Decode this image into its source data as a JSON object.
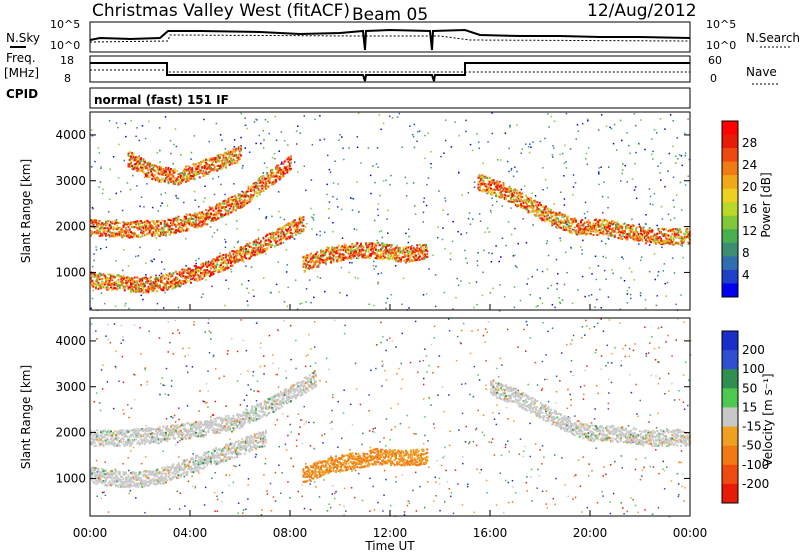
{
  "header": {
    "station": "Christmas Valley West (fitACF)",
    "beam": "Beam 05",
    "date": "12/Aug/2012"
  },
  "status_panels": {
    "left_labels": {
      "nsky": "N.Sky",
      "freq": "Freq.",
      "freq_unit": "[MHz]",
      "cpid": "CPID"
    },
    "right_labels": {
      "nsearch": "N.Search",
      "nave": "Nave"
    },
    "noise_ticks": {
      "top": "10^5",
      "bottom": "10^0"
    },
    "freq_ticks": {
      "top": "18",
      "bottom": "8"
    },
    "nave_ticks": {
      "top": "60",
      "bottom": "0"
    },
    "cpid_text": "normal (fast) 151 IF"
  },
  "chart_data": [
    {
      "type": "heatmap",
      "name": "power",
      "ylabel": "Slant Range [km]",
      "ylim": [
        180,
        4500
      ],
      "xlim_hours": [
        0,
        24
      ],
      "y_ticks": [
        1000,
        2000,
        3000,
        4000
      ],
      "colorbar": {
        "label": "Power [dB]",
        "ticks": [
          "4",
          "8",
          "12",
          "16",
          "20",
          "24",
          "28"
        ],
        "colors": [
          "#0000ee",
          "#1f3fc8",
          "#2f6fb0",
          "#3a8f70",
          "#4aaf50",
          "#7fc83a",
          "#b8d82a",
          "#eed020",
          "#f0a818",
          "#f07a14",
          "#ee4a10",
          "#e81a08",
          "#ff0000"
        ]
      },
      "features": [
        {
          "t": [
            0.0,
            1.5,
            3.0,
            4.5,
            6.0,
            7.0,
            8.0
          ],
          "r": [
            2000,
            1950,
            2000,
            2200,
            2600,
            3000,
            3400
          ]
        },
        {
          "t": [
            0.0,
            1.0,
            2.0,
            3.0,
            4.5,
            6.0,
            7.5,
            8.5
          ],
          "r": [
            850,
            800,
            750,
            800,
            1050,
            1400,
            1800,
            2100
          ]
        },
        {
          "t": [
            1.5,
            2.5,
            3.5,
            4.5,
            6.0
          ],
          "r": [
            3500,
            3200,
            3100,
            3300,
            3600
          ]
        },
        {
          "t": [
            8.5,
            9.5,
            10.5,
            11.5,
            12.5,
            13.5
          ],
          "r": [
            1200,
            1400,
            1500,
            1500,
            1400,
            1500
          ]
        },
        {
          "t": [
            15.5,
            16.5,
            17.5,
            18.5,
            19.5,
            20.5,
            21.5,
            22.5,
            24.0
          ],
          "r": [
            3000,
            2800,
            2500,
            2200,
            2000,
            2000,
            1900,
            1800,
            1800
          ]
        }
      ]
    },
    {
      "type": "heatmap",
      "name": "velocity",
      "ylabel": "Slant Range [km]",
      "ylim": [
        180,
        4500
      ],
      "xlim_hours": [
        0,
        24
      ],
      "y_ticks": [
        1000,
        2000,
        3000,
        4000
      ],
      "colorbar": {
        "label": "Velocity [m s⁻¹]",
        "ticks": [
          "200",
          "100",
          "50",
          "15",
          "-15",
          "-50",
          "-100",
          "-200"
        ],
        "colors": [
          "#1a2fc8",
          "#2f4fd0",
          "#2f8f4f",
          "#4fc84f",
          "#c8c8c8",
          "#f0a020",
          "#f07a14",
          "#f04a10",
          "#e81a08"
        ]
      },
      "features": [
        {
          "t": [
            0.0,
            1.5,
            3.0,
            4.5,
            6.0,
            7.5,
            9.0
          ],
          "r": [
            1900,
            1900,
            2000,
            2100,
            2300,
            2700,
            3200
          ],
          "color": "ground"
        },
        {
          "t": [
            0.0,
            1.0,
            2.0,
            3.0,
            4.0,
            5.5,
            7.0
          ],
          "r": [
            1100,
            1000,
            1000,
            1100,
            1300,
            1600,
            1900
          ],
          "color": "ground"
        },
        {
          "t": [
            8.5,
            9.5,
            10.5,
            11.5,
            12.5,
            13.5
          ],
          "r": [
            1100,
            1300,
            1400,
            1500,
            1450,
            1500
          ],
          "color": "negative"
        },
        {
          "t": [
            16.0,
            17.0,
            18.0,
            19.0,
            20.0,
            21.0,
            22.0,
            24.0
          ],
          "r": [
            3000,
            2800,
            2500,
            2200,
            2000,
            2000,
            1900,
            1900
          ],
          "color": "ground"
        }
      ]
    }
  ],
  "x_axis": {
    "label": "Time UT",
    "tick_labels": [
      "00:00",
      "04:00",
      "08:00",
      "12:00",
      "16:00",
      "20:00",
      "00:00"
    ]
  }
}
